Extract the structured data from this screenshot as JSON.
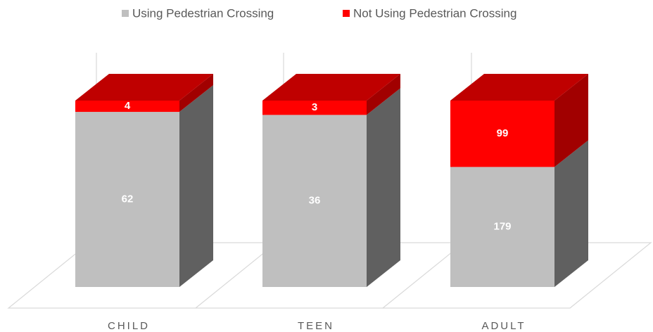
{
  "chart_data": {
    "type": "bar",
    "stacking": "percent",
    "three_d": true,
    "categories": [
      "CHILD",
      "TEEN",
      "ADULT"
    ],
    "series": [
      {
        "name": "Using Pedestrian Crossing",
        "color": "#bfbfbf",
        "values": [
          62,
          36,
          179
        ]
      },
      {
        "name": "Not Using Pedestrian Crossing",
        "color": "#ff0000",
        "values": [
          4,
          3,
          99
        ]
      }
    ],
    "legend": "top"
  }
}
